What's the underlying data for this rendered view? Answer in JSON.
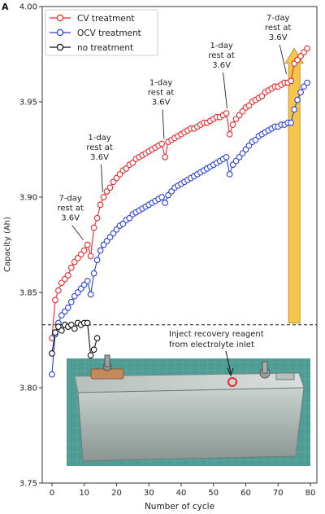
{
  "panel_label": "A",
  "inset": {
    "callout_line1": "Inject recovery reagent",
    "callout_line2": "from electrolyte inlet"
  },
  "chart_data": {
    "type": "line",
    "title": "",
    "xlabel": "Number of cycle",
    "ylabel": "Capacity (Ah)",
    "xlim": [
      -3,
      82
    ],
    "ylim": [
      3.75,
      4.0
    ],
    "xticks": [
      0,
      10,
      20,
      30,
      40,
      50,
      60,
      70,
      80
    ],
    "yticks": [
      3.75,
      3.8,
      3.85,
      3.9,
      3.95,
      4.0
    ],
    "ytick_labels": [
      "3.75",
      "3.80",
      "3.85",
      "3.90",
      "3.95",
      "4.00"
    ],
    "grid": false,
    "legend_position": "top-left",
    "reference_line": {
      "y": 3.833,
      "style": "dashed"
    },
    "series": [
      {
        "name": "CV treatment",
        "color": "#e8282b",
        "x": [
          0,
          1,
          2,
          3,
          4,
          5,
          6,
          7,
          8,
          9,
          10,
          11,
          12,
          13,
          14,
          15,
          16,
          17,
          18,
          19,
          20,
          21,
          22,
          23,
          24,
          25,
          26,
          27,
          28,
          29,
          30,
          31,
          32,
          33,
          34,
          35,
          36,
          37,
          38,
          39,
          40,
          41,
          42,
          43,
          44,
          45,
          46,
          47,
          48,
          49,
          50,
          51,
          52,
          53,
          54,
          55,
          56,
          57,
          58,
          59,
          60,
          61,
          62,
          63,
          64,
          65,
          66,
          67,
          68,
          69,
          70,
          71,
          72,
          73,
          74,
          75,
          76,
          77,
          78,
          79
        ],
        "y": [
          3.826,
          3.846,
          3.851,
          3.855,
          3.857,
          3.859,
          3.863,
          3.866,
          3.868,
          3.87,
          3.872,
          3.875,
          3.869,
          3.884,
          3.889,
          3.896,
          3.9,
          3.903,
          3.905,
          3.908,
          3.91,
          3.912,
          3.914,
          3.915,
          3.917,
          3.918,
          3.92,
          3.921,
          3.922,
          3.923,
          3.924,
          3.925,
          3.926,
          3.927,
          3.928,
          3.921,
          3.929,
          3.93,
          3.931,
          3.932,
          3.933,
          3.934,
          3.935,
          3.936,
          3.936,
          3.937,
          3.938,
          3.939,
          3.939,
          3.94,
          3.941,
          3.942,
          3.942,
          3.943,
          3.944,
          3.933,
          3.938,
          3.941,
          3.943,
          3.945,
          3.947,
          3.948,
          3.95,
          3.951,
          3.952,
          3.953,
          3.955,
          3.956,
          3.957,
          3.958,
          3.958,
          3.959,
          3.96,
          3.96,
          3.961,
          3.97,
          3.972,
          3.974,
          3.976,
          3.978
        ]
      },
      {
        "name": "OCV treatment",
        "color": "#2b3fd8",
        "x": [
          0,
          1,
          2,
          3,
          4,
          5,
          6,
          7,
          8,
          9,
          10,
          11,
          12,
          13,
          14,
          15,
          16,
          17,
          18,
          19,
          20,
          21,
          22,
          23,
          24,
          25,
          26,
          27,
          28,
          29,
          30,
          31,
          32,
          33,
          34,
          35,
          36,
          37,
          38,
          39,
          40,
          41,
          42,
          43,
          44,
          45,
          46,
          47,
          48,
          49,
          50,
          51,
          52,
          53,
          54,
          55,
          56,
          57,
          58,
          59,
          60,
          61,
          62,
          63,
          64,
          65,
          66,
          67,
          68,
          69,
          70,
          71,
          72,
          73,
          74,
          75,
          76,
          77,
          78,
          79
        ],
        "y": [
          3.807,
          3.828,
          3.834,
          3.838,
          3.84,
          3.842,
          3.845,
          3.848,
          3.85,
          3.852,
          3.854,
          3.856,
          3.849,
          3.86,
          3.867,
          3.872,
          3.875,
          3.877,
          3.879,
          3.881,
          3.883,
          3.885,
          3.886,
          3.888,
          3.889,
          3.891,
          3.892,
          3.893,
          3.894,
          3.895,
          3.896,
          3.897,
          3.898,
          3.899,
          3.9,
          3.897,
          3.901,
          3.903,
          3.905,
          3.906,
          3.907,
          3.908,
          3.909,
          3.91,
          3.911,
          3.912,
          3.913,
          3.914,
          3.915,
          3.916,
          3.917,
          3.918,
          3.919,
          3.92,
          3.921,
          3.912,
          3.917,
          3.919,
          3.921,
          3.923,
          3.925,
          3.927,
          3.929,
          3.93,
          3.932,
          3.933,
          3.934,
          3.935,
          3.936,
          3.937,
          3.937,
          3.938,
          3.938,
          3.939,
          3.939,
          3.946,
          3.951,
          3.955,
          3.958,
          3.96
        ]
      },
      {
        "name": "no treatment",
        "color": "#111111",
        "x": [
          0,
          1,
          2,
          3,
          4,
          5,
          6,
          7,
          8,
          9,
          10,
          11,
          12,
          13,
          14
        ],
        "y": [
          3.818,
          3.829,
          3.832,
          3.83,
          3.833,
          3.832,
          3.833,
          3.831,
          3.834,
          3.833,
          3.834,
          3.834,
          3.817,
          3.82,
          3.826
        ]
      }
    ],
    "annotations": [
      {
        "lines": [
          "7-day",
          "rest at",
          "3.6V"
        ],
        "x": 12,
        "y": 3.875
      },
      {
        "lines": [
          "1-day",
          "rest at",
          "3.6V"
        ],
        "x": 16,
        "y": 3.9
      },
      {
        "lines": [
          "1-day",
          "rest at",
          "3.6V"
        ],
        "x": 35,
        "y": 3.928
      },
      {
        "lines": [
          "1-day",
          "rest at",
          "3.6V"
        ],
        "x": 55,
        "y": 3.944
      },
      {
        "lines": [
          "7-day",
          "rest at",
          "3.6V"
        ],
        "x": 74,
        "y": 3.962
      }
    ],
    "highlight_arrow": {
      "x": 75,
      "y_from": 3.834,
      "y_to": 3.978,
      "color": "#f6c54c"
    }
  }
}
